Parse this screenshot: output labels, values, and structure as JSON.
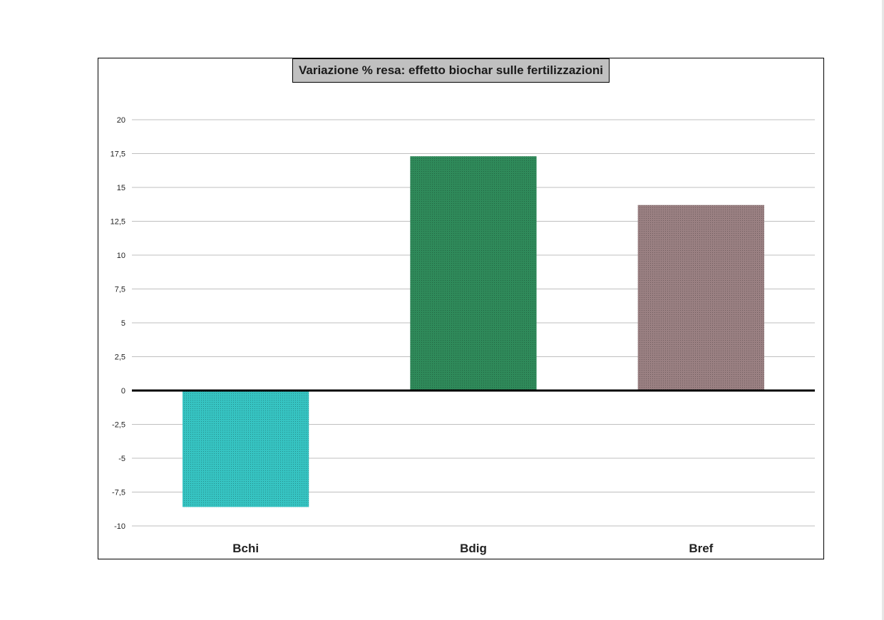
{
  "chart_data": {
    "type": "bar",
    "title": "Variazione  %  resa: effetto biochar sulle fertilizzazioni",
    "xlabel": "",
    "ylabel": "",
    "categories": [
      "Bchi",
      "Bdig",
      "Bref"
    ],
    "values": [
      -8.6,
      17.3,
      13.7
    ],
    "ylim": [
      -10,
      20
    ],
    "yticks": [
      "20",
      "17,5",
      "15",
      "12,5",
      "10",
      "7,5",
      "5",
      "2,5",
      "0",
      "-2,5",
      "-5",
      "-7,5",
      "-10"
    ],
    "ytick_values": [
      20,
      17.5,
      15,
      12.5,
      10,
      7.5,
      5,
      2.5,
      0,
      -2.5,
      -5,
      -7.5,
      -10
    ],
    "grid": true,
    "legend": "none",
    "bar_colors": [
      "#36c4c2",
      "#2f8a5a",
      "#9a8082"
    ]
  }
}
